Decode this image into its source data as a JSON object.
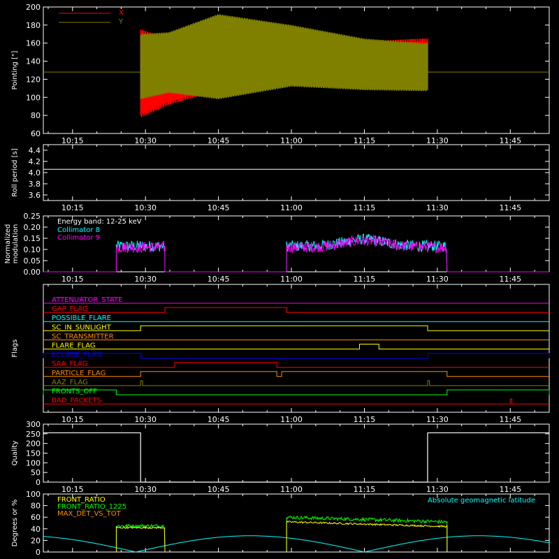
{
  "chart_data": [
    {
      "id": "pointing",
      "type": "line",
      "ylabel": "Pointing [\"]",
      "ylim": [
        60,
        200
      ],
      "yticks": [
        60,
        80,
        100,
        120,
        140,
        160,
        180,
        200
      ],
      "xlim": [
        "10:09",
        "11:53"
      ],
      "xticks": [
        "10:15",
        "10:30",
        "10:45",
        "11:00",
        "11:15",
        "11:30",
        "11:45"
      ],
      "active": [
        "10:29",
        "11:28"
      ],
      "series": [
        {
          "name": "X",
          "color": "#ff0000",
          "baseline": 128,
          "min": [
            [
              10.483,
              78
            ],
            [
              10.58,
              92
            ],
            [
              10.75,
              108
            ],
            [
              11.0,
              113
            ],
            [
              11.25,
              120
            ],
            [
              11.45,
              122
            ]
          ],
          "max": [
            [
              10.483,
              175
            ],
            [
              10.58,
              165
            ],
            [
              10.75,
              158
            ],
            [
              11.0,
              162
            ],
            [
              11.25,
              162
            ],
            [
              11.45,
              165
            ]
          ]
        },
        {
          "name": "Y",
          "color": "#808000",
          "baseline": 128,
          "min": [
            [
              10.483,
              98
            ],
            [
              10.58,
              105
            ],
            [
              10.75,
              98
            ],
            [
              11.0,
              112
            ],
            [
              11.25,
              108
            ],
            [
              11.45,
              107
            ]
          ],
          "max": [
            [
              10.483,
              170
            ],
            [
              10.58,
              172
            ],
            [
              10.75,
              192
            ],
            [
              11.0,
              180
            ],
            [
              11.25,
              165
            ],
            [
              11.45,
              160
            ]
          ]
        }
      ]
    },
    {
      "id": "roll",
      "type": "line",
      "ylabel": "Roll period [s]",
      "ylim": [
        3.5,
        4.5
      ],
      "yticks": [
        3.6,
        3.8,
        4.0,
        4.2,
        4.4
      ],
      "xlim": [
        "10:09",
        "11:53"
      ],
      "xticks": [
        "10:15",
        "10:30",
        "10:45",
        "11:00",
        "11:15",
        "11:30",
        "11:45"
      ],
      "series": [
        {
          "name": "",
          "color": "#ffffff",
          "value": 4.06
        }
      ]
    },
    {
      "id": "modulation",
      "type": "line",
      "ylabel": "Normalized modulation",
      "ylim": [
        0,
        0.25
      ],
      "yticks": [
        0.0,
        0.05,
        0.1,
        0.15,
        0.2,
        0.25
      ],
      "xlim": [
        "10:09",
        "11:53"
      ],
      "xticks": [
        "10:15",
        "10:30",
        "10:45",
        "11:00",
        "11:15",
        "11:30",
        "11:45"
      ],
      "annotation": "Energy band: 12-25 keV",
      "segments": [
        [
          "10:24",
          "10:34"
        ],
        [
          "10:59",
          "11:32"
        ]
      ],
      "series": [
        {
          "name": "Collimator 8",
          "color": "#00ffff",
          "level": 0.115
        },
        {
          "name": "Collimator 9",
          "color": "#ff00ff",
          "level": 0.11
        }
      ]
    },
    {
      "id": "flags",
      "type": "step",
      "ylabel": "Flags",
      "xlim": [
        "10:09",
        "11:53"
      ],
      "xticks": [
        "10:15",
        "10:30",
        "10:45",
        "11:00",
        "11:15",
        "11:30",
        "11:45"
      ],
      "flags": [
        {
          "name": "ATTENUATOR_STATE",
          "color": "#ff00ff",
          "high": []
        },
        {
          "name": "GAP_FLAG",
          "color": "#ff0000",
          "high": [
            [
              "10:34",
              "10:59"
            ]
          ]
        },
        {
          "name": "POSSIBLE_FLARE",
          "color": "#00ffff",
          "high": []
        },
        {
          "name": "SC_IN_SUNLIGHT",
          "color": "#ffff00",
          "high": [
            [
              "10:29",
              "11:28"
            ]
          ]
        },
        {
          "name": "SC_TRANSMITTER",
          "color": "#ff8c00",
          "high": []
        },
        {
          "name": "FLARE_FLAG",
          "color": "#ffff00",
          "high": [
            [
              "11:14",
              "11:18"
            ]
          ]
        },
        {
          "name": "ECLIPSE_FLAG",
          "color": "#0000ff",
          "high": [
            [
              "10:09",
              "10:29"
            ],
            [
              "11:28",
              "11:53"
            ]
          ]
        },
        {
          "name": "SAA_FLAG",
          "color": "#ff0000",
          "high": [
            [
              "10:36",
              "10:57"
            ]
          ]
        },
        {
          "name": "PARTICLE_FLAG",
          "color": "#ff8c00",
          "high": [
            [
              "10:29",
              "10:57"
            ],
            [
              "10:58",
              "11:32"
            ]
          ]
        },
        {
          "name": "AAZ_FLAG",
          "color": "#808000",
          "high": [
            [
              "10:29",
              "10:29.4"
            ],
            [
              "11:28",
              "11:28.4"
            ]
          ]
        },
        {
          "name": "FRONTS_OFF",
          "color": "#00ff00",
          "high": [
            [
              "10:09",
              "10:24"
            ],
            [
              "11:32",
              "11:53"
            ]
          ]
        },
        {
          "name": "BAD_PACKETS",
          "color": "#ff0000",
          "high": [
            [
              "11:45",
              "11:45.3"
            ]
          ]
        }
      ]
    },
    {
      "id": "quality",
      "type": "step",
      "ylabel": "Quality",
      "ylim": [
        0,
        300
      ],
      "yticks": [
        0,
        50,
        100,
        150,
        200,
        250,
        300
      ],
      "xlim": [
        "10:09",
        "11:53"
      ],
      "xticks": [
        "10:15",
        "10:30",
        "10:45",
        "11:00",
        "11:15",
        "11:30",
        "11:45"
      ],
      "series": [
        {
          "name": "",
          "color": "#ffffff",
          "steps": [
            [
              "10:09",
              255
            ],
            [
              "10:29",
              0
            ],
            [
              "11:28",
              255
            ],
            [
              "11:53",
              255
            ]
          ]
        }
      ]
    },
    {
      "id": "ratios",
      "type": "line",
      "ylabel": "Degrees or %",
      "ylim": [
        0,
        100
      ],
      "yticks": [
        0,
        20,
        40,
        60,
        80,
        100
      ],
      "xlim": [
        "10:09",
        "11:53"
      ],
      "annotation": "Absolute geomagnetic latitude",
      "annotation_color": "#00ffff",
      "segments": [
        [
          "10:24",
          "10:34"
        ],
        [
          "10:59",
          "11:32"
        ]
      ],
      "series": [
        {
          "name": "FRONT_RATIO",
          "color": "#ffff00",
          "level_a": 42,
          "level_b": 52
        },
        {
          "name": "FRONT_RATIO_1225",
          "color": "#00ff00",
          "level_a": 45,
          "level_b": 60
        },
        {
          "name": "MAX_DET_VS_TOT",
          "color": "#ff8c00",
          "level_a": 0,
          "level_b": 0
        },
        {
          "name": "Absolute geomagnetic latitude",
          "color": "#00ffff",
          "amplitude": 28
        }
      ]
    }
  ]
}
